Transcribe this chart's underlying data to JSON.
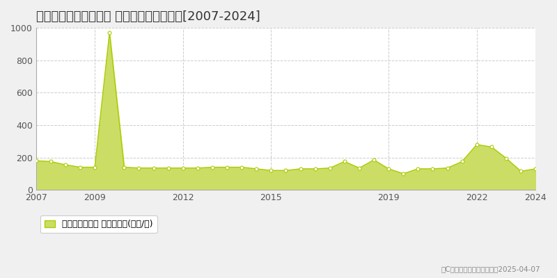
{
  "title": "大阪市住吉区帝塚山中 マンション価格推移[2007-2024]",
  "years": [
    2007,
    2007.5,
    2008,
    2008.5,
    2009,
    2009.5,
    2010,
    2010.5,
    2011,
    2011.5,
    2012,
    2012.5,
    2013,
    2013.5,
    2014,
    2014.5,
    2015,
    2015.5,
    2016,
    2016.5,
    2017,
    2017.5,
    2018,
    2018.5,
    2019,
    2019.5,
    2020,
    2020.5,
    2021,
    2021.5,
    2022,
    2022.5,
    2023,
    2023.5,
    2024
  ],
  "values": [
    180,
    175,
    155,
    140,
    140,
    970,
    140,
    135,
    135,
    135,
    135,
    135,
    140,
    140,
    140,
    130,
    120,
    120,
    130,
    130,
    135,
    175,
    135,
    185,
    130,
    100,
    130,
    130,
    135,
    175,
    280,
    265,
    195,
    115,
    130
  ],
  "line_color": "#aacc00",
  "fill_color": "#ccdd66",
  "marker_color": "#ffffff",
  "marker_edge_color": "#aacc00",
  "bg_color": "#f0f0f0",
  "plot_bg_color": "#ffffff",
  "grid_color": "#cccccc",
  "ylim": [
    0,
    1000
  ],
  "xlim": [
    2007,
    2024
  ],
  "yticks": [
    0,
    200,
    400,
    600,
    800,
    1000
  ],
  "xticks": [
    2007,
    2009,
    2012,
    2015,
    2019,
    2022,
    2024
  ],
  "legend_label": "マンション価格 平均坪単価(万円/坪)",
  "copyright_text": "（C）土地価格ドットコム　2025-04-07",
  "title_fontsize": 13,
  "tick_fontsize": 9,
  "legend_fontsize": 9
}
